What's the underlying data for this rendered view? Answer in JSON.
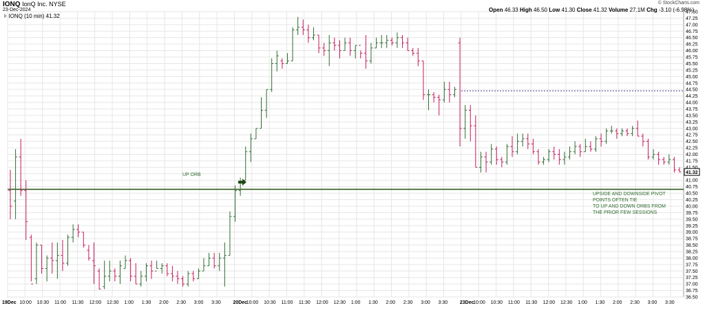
{
  "header": {
    "symbol": "IONQ",
    "company": "IonQ Inc. NYSE",
    "date": "23-Dec-2024",
    "legend_text": "IONQ (10 min) 41.32",
    "credit": "© StockCharts.com",
    "open_label": "Open",
    "open": "46.33",
    "high_label": "High",
    "high": "46.50",
    "low_label": "Low",
    "low": "41.30",
    "close_label": "Close",
    "close": "41.32",
    "volume_label": "Volume",
    "volume": "27.1M",
    "chg_label": "Chg",
    "chg": "-3.10 (-6.98%)"
  },
  "annotations": {
    "orb_label": "UP ORB",
    "pivot_note": [
      "UPSIDE AND DOWNSIDE PIVOT",
      "POINTS OFTEN TIE",
      "TO UP AND DOWN ORBS FROM",
      "THE PRIOR FEW SESSIONS"
    ]
  },
  "colors": {
    "up": "#2e6b2e",
    "down": "#c2185b",
    "orb_line": "#2e5a1e",
    "dashed_line": "#3a3a8a",
    "grid": "#e6e6e6"
  },
  "chart_data": {
    "type": "ohlc",
    "interval": "10 min",
    "ylim": [
      36.5,
      47.5
    ],
    "y_ticks": [
      36.5,
      36.75,
      37.0,
      37.25,
      37.5,
      37.75,
      38.0,
      38.25,
      38.5,
      38.75,
      39.0,
      39.25,
      39.5,
      39.75,
      40.0,
      40.25,
      40.5,
      40.75,
      41.0,
      41.25,
      41.5,
      41.75,
      42.0,
      42.25,
      42.5,
      42.75,
      43.0,
      43.25,
      43.5,
      43.75,
      44.0,
      44.25,
      44.5,
      44.75,
      45.0,
      45.25,
      45.5,
      45.75,
      46.0,
      46.25,
      46.5,
      46.75,
      47.0,
      47.25,
      47.5
    ],
    "x_tick_labels": [
      "19Dec",
      "10:00",
      "10:30",
      "11:00",
      "11:30",
      "12:00",
      "12:30",
      "1:00",
      "1:30",
      "2:00",
      "2:30",
      "3:00",
      "3:30",
      "20Dec",
      "10:00",
      "10:30",
      "11:00",
      "11:30",
      "12:00",
      "12:30",
      "1:00",
      "1:30",
      "2:00",
      "2:30",
      "3:00",
      "3:30",
      "23Dec",
      "10:00",
      "10:30",
      "11:00",
      "11:30",
      "12:00",
      "12:30",
      "1:00",
      "1:30",
      "2:00",
      "2:30",
      "3:00",
      "3:30"
    ],
    "bold_x_ticks": [
      "19Dec",
      "20Dec",
      "23Dec"
    ],
    "horizontal_lines": [
      {
        "name": "UP ORB",
        "value": 40.65,
        "style": "solid"
      },
      {
        "name": "",
        "value": 44.45,
        "style": "dashed"
      }
    ],
    "last_price": 41.32,
    "bars": [
      [
        40.6,
        41.4,
        39.5,
        40.0
      ],
      [
        40.2,
        42.2,
        39.5,
        41.9
      ],
      [
        41.9,
        42.6,
        40.4,
        40.6
      ],
      [
        40.6,
        41.0,
        38.7,
        39.4
      ],
      [
        38.8,
        38.9,
        37.1,
        37.0
      ],
      [
        37.2,
        38.6,
        37.0,
        38.5
      ],
      [
        38.5,
        38.5,
        37.4,
        37.6
      ],
      [
        37.6,
        38.1,
        37.1,
        38.0
      ],
      [
        38.0,
        38.6,
        37.4,
        37.9
      ],
      [
        37.9,
        38.6,
        37.2,
        38.1
      ],
      [
        38.1,
        38.7,
        37.5,
        37.8
      ],
      [
        37.8,
        38.9,
        37.7,
        38.8
      ],
      [
        38.8,
        39.3,
        38.6,
        39.1
      ],
      [
        39.1,
        39.3,
        38.8,
        39.0
      ],
      [
        39.0,
        39.0,
        38.4,
        38.5
      ],
      [
        38.3,
        38.5,
        37.9,
        38.0
      ],
      [
        37.9,
        38.6,
        37.0,
        37.7
      ],
      [
        37.5,
        37.6,
        36.8,
        36.8
      ],
      [
        36.9,
        37.9,
        36.8,
        37.3
      ],
      [
        37.3,
        37.9,
        37.1,
        37.5
      ],
      [
        37.5,
        37.6,
        37.1,
        37.3
      ],
      [
        37.3,
        37.9,
        37.0,
        37.7
      ],
      [
        37.6,
        38.1,
        37.6,
        37.9
      ],
      [
        37.9,
        38.0,
        37.1,
        37.3
      ],
      [
        37.3,
        37.8,
        37.0,
        37.0
      ],
      [
        37.0,
        37.5,
        36.9,
        37.3
      ],
      [
        37.3,
        37.8,
        37.1,
        37.7
      ],
      [
        37.7,
        37.9,
        37.2,
        37.5
      ],
      [
        37.5,
        37.9,
        37.6,
        37.6
      ],
      [
        37.6,
        37.8,
        37.4,
        37.7
      ],
      [
        37.7,
        37.8,
        37.3,
        37.4
      ],
      [
        37.4,
        37.7,
        37.1,
        37.3
      ],
      [
        37.3,
        37.5,
        37.0,
        37.2
      ],
      [
        37.2,
        37.3,
        36.9,
        37.0
      ],
      [
        37.0,
        37.5,
        36.9,
        37.4
      ],
      [
        37.4,
        37.5,
        37.1,
        37.2
      ],
      [
        37.2,
        37.6,
        37.2,
        37.5
      ],
      [
        37.5,
        38.0,
        37.5,
        37.7
      ],
      [
        37.7,
        38.2,
        37.7,
        38.0
      ],
      [
        38.0,
        38.2,
        37.6,
        37.7
      ],
      [
        37.7,
        38.2,
        37.5,
        38.0
      ],
      [
        38.0,
        38.6,
        36.9,
        38.1
      ],
      [
        38.1,
        39.8,
        38.1,
        39.6
      ],
      [
        39.6,
        40.8,
        39.4,
        40.6
      ],
      [
        40.6,
        41.1,
        40.4,
        40.9
      ],
      [
        41.0,
        42.3,
        41.0,
        42.1
      ],
      [
        42.1,
        42.8,
        41.7,
        42.6
      ],
      [
        42.6,
        43.0,
        42.6,
        43.0
      ],
      [
        43.0,
        44.2,
        43.0,
        43.7
      ],
      [
        43.7,
        44.5,
        43.4,
        44.5
      ],
      [
        44.5,
        45.7,
        44.4,
        45.5
      ],
      [
        45.5,
        46.0,
        45.2,
        45.8
      ],
      [
        45.6,
        45.7,
        45.3,
        45.5
      ],
      [
        45.5,
        45.9,
        45.5,
        45.6
      ],
      [
        45.6,
        46.9,
        45.6,
        46.8
      ],
      [
        46.8,
        47.3,
        46.6,
        46.9
      ],
      [
        46.9,
        47.2,
        46.6,
        46.8
      ],
      [
        46.8,
        47.0,
        46.3,
        46.5
      ],
      [
        46.5,
        46.9,
        46.4,
        46.6
      ],
      [
        46.6,
        46.6,
        45.9,
        46.1
      ],
      [
        46.1,
        46.3,
        45.8,
        46.0
      ],
      [
        46.0,
        46.6,
        45.4,
        46.3
      ],
      [
        46.3,
        46.5,
        46.0,
        46.2
      ],
      [
        46.2,
        46.4,
        45.7,
        46.0
      ],
      [
        46.0,
        46.5,
        46.0,
        46.3
      ],
      [
        46.3,
        46.5,
        45.8,
        46.0
      ],
      [
        46.0,
        46.2,
        45.7,
        46.2
      ],
      [
        46.2,
        46.0,
        45.7,
        45.9
      ],
      [
        45.9,
        46.6,
        45.3,
        45.6
      ],
      [
        45.6,
        46.3,
        45.5,
        46.1
      ],
      [
        46.1,
        46.5,
        46.1,
        46.3
      ],
      [
        46.3,
        46.6,
        46.1,
        46.3
      ],
      [
        46.3,
        46.6,
        46.1,
        46.4
      ],
      [
        46.4,
        46.5,
        46.2,
        46.3
      ],
      [
        46.3,
        46.7,
        46.1,
        46.5
      ],
      [
        46.5,
        46.6,
        46.1,
        46.3
      ],
      [
        46.3,
        46.5,
        46.0,
        46.0
      ],
      [
        46.0,
        46.1,
        45.8,
        45.9
      ],
      [
        45.9,
        46.1,
        45.4,
        45.6
      ],
      [
        45.6,
        45.6,
        44.1,
        44.3
      ],
      [
        44.3,
        44.5,
        43.7,
        44.3
      ],
      [
        44.3,
        44.4,
        44.0,
        44.2
      ],
      [
        44.2,
        44.3,
        43.5,
        44.1
      ],
      [
        44.1,
        44.8,
        44.0,
        44.5
      ],
      [
        44.5,
        44.8,
        44.0,
        44.3
      ],
      [
        44.3,
        44.6,
        44.2,
        44.5
      ],
      [
        46.3,
        46.5,
        42.3,
        43.0
      ],
      [
        43.0,
        43.9,
        42.6,
        43.7
      ],
      [
        43.7,
        43.9,
        42.5,
        43.1
      ],
      [
        43.1,
        43.5,
        41.5,
        41.5
      ],
      [
        41.5,
        42.1,
        41.3,
        41.9
      ],
      [
        41.9,
        42.1,
        41.3,
        41.7
      ],
      [
        41.7,
        42.4,
        41.6,
        42.2
      ],
      [
        42.2,
        42.3,
        41.6,
        41.8
      ],
      [
        41.8,
        41.9,
        41.5,
        41.7
      ],
      [
        41.7,
        42.4,
        41.6,
        42.3
      ],
      [
        42.3,
        42.7,
        41.9,
        42.1
      ],
      [
        42.1,
        42.8,
        42.0,
        42.5
      ],
      [
        42.5,
        42.8,
        42.3,
        42.6
      ],
      [
        42.6,
        42.8,
        42.2,
        42.4
      ],
      [
        42.4,
        42.6,
        42.0,
        42.1
      ],
      [
        42.1,
        42.2,
        41.6,
        41.7
      ],
      [
        41.7,
        41.9,
        41.6,
        41.8
      ],
      [
        41.8,
        42.2,
        41.7,
        42.1
      ],
      [
        42.1,
        42.3,
        41.8,
        42.0
      ],
      [
        42.0,
        42.2,
        41.6,
        41.8
      ],
      [
        41.8,
        42.1,
        41.6,
        41.9
      ],
      [
        41.9,
        42.3,
        41.8,
        42.1
      ],
      [
        42.1,
        42.5,
        42.0,
        42.3
      ],
      [
        42.3,
        42.4,
        41.9,
        42.1
      ],
      [
        42.1,
        42.6,
        42.1,
        42.3
      ],
      [
        42.3,
        42.5,
        42.1,
        42.2
      ],
      [
        42.2,
        42.7,
        42.1,
        42.6
      ],
      [
        42.6,
        42.8,
        42.3,
        42.5
      ],
      [
        42.5,
        43.0,
        42.4,
        42.9
      ],
      [
        42.9,
        43.1,
        42.8,
        42.9
      ],
      [
        42.9,
        43.0,
        42.6,
        42.8
      ],
      [
        42.8,
        43.0,
        42.7,
        42.9
      ],
      [
        42.9,
        43.0,
        42.7,
        42.8
      ],
      [
        42.8,
        43.1,
        42.7,
        43.0
      ],
      [
        43.0,
        43.3,
        42.7,
        42.7
      ],
      [
        42.7,
        42.8,
        42.3,
        42.5
      ],
      [
        42.5,
        42.6,
        41.8,
        41.9
      ],
      [
        41.9,
        42.2,
        41.8,
        42.0
      ],
      [
        42.0,
        42.1,
        41.6,
        41.8
      ],
      [
        41.8,
        41.9,
        41.6,
        41.7
      ],
      [
        41.7,
        42.0,
        41.6,
        41.8
      ],
      [
        41.8,
        41.9,
        41.3,
        41.4
      ],
      [
        41.4,
        41.5,
        41.3,
        41.32
      ]
    ]
  }
}
